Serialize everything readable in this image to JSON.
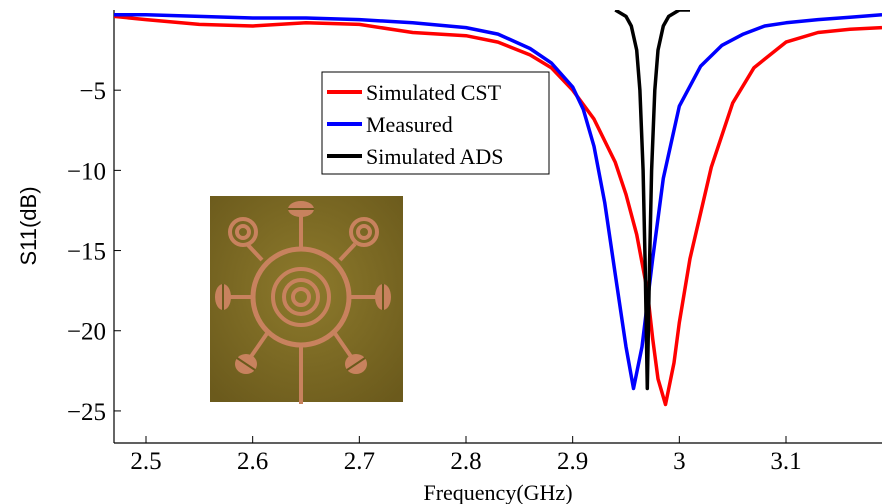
{
  "chart_data": {
    "type": "line",
    "xlabel": "Frequency(GHz)",
    "ylabel": "S11(dB)",
    "xlim": [
      2.47,
      3.19
    ],
    "ylim": [
      -27,
      0
    ],
    "xticks": [
      2.5,
      2.6,
      2.7,
      2.8,
      2.9,
      3,
      3.1
    ],
    "xtick_labels": [
      "2.5",
      "2.6",
      "2.7",
      "2.8",
      "2.9",
      "3",
      "3.1"
    ],
    "yticks": [
      -5,
      -10,
      -15,
      -20,
      -25
    ],
    "ytick_labels": [
      "−5",
      "−10",
      "−15",
      "−20",
      "−25"
    ],
    "grid": false,
    "legend_position": "upper-center",
    "series": [
      {
        "name": "Simulated CST",
        "color": "#ff0000",
        "x": [
          2.47,
          2.5,
          2.55,
          2.6,
          2.65,
          2.7,
          2.75,
          2.8,
          2.83,
          2.86,
          2.88,
          2.9,
          2.92,
          2.94,
          2.95,
          2.96,
          2.97,
          2.975,
          2.98,
          2.987,
          2.995,
          3.0,
          3.01,
          3.03,
          3.05,
          3.07,
          3.1,
          3.13,
          3.16,
          3.19
        ],
        "y": [
          -0.4,
          -0.6,
          -0.9,
          -1.0,
          -0.8,
          -0.9,
          -1.4,
          -1.6,
          -2.0,
          -2.8,
          -3.6,
          -5.0,
          -6.8,
          -9.5,
          -11.5,
          -14.0,
          -17.5,
          -20.5,
          -23.0,
          -24.6,
          -22.0,
          -19.5,
          -15.5,
          -9.8,
          -5.8,
          -3.6,
          -2.0,
          -1.4,
          -1.2,
          -1.1
        ]
      },
      {
        "name": "Measured",
        "color": "#0000ff",
        "x": [
          2.47,
          2.5,
          2.55,
          2.6,
          2.65,
          2.7,
          2.75,
          2.8,
          2.83,
          2.86,
          2.88,
          2.9,
          2.91,
          2.92,
          2.93,
          2.94,
          2.95,
          2.957,
          2.965,
          2.975,
          2.985,
          3.0,
          3.02,
          3.04,
          3.06,
          3.08,
          3.1,
          3.13,
          3.16,
          3.19
        ],
        "y": [
          -0.3,
          -0.3,
          -0.4,
          -0.5,
          -0.5,
          -0.6,
          -0.8,
          -1.1,
          -1.5,
          -2.4,
          -3.3,
          -4.8,
          -6.2,
          -8.5,
          -12.0,
          -16.5,
          -21.0,
          -23.6,
          -21.0,
          -15.5,
          -10.5,
          -6.0,
          -3.5,
          -2.2,
          -1.5,
          -1.0,
          -0.8,
          -0.6,
          -0.45,
          -0.3
        ]
      },
      {
        "name": "Simulated ADS",
        "color": "#000000",
        "x": [
          2.94,
          2.95,
          2.955,
          2.96,
          2.963,
          2.966,
          2.968,
          2.97,
          2.972,
          2.974,
          2.977,
          2.98,
          2.985,
          2.99,
          3.0,
          3.01
        ],
        "y": [
          0.0,
          -0.4,
          -1.0,
          -2.5,
          -5.0,
          -10.0,
          -16.0,
          -23.6,
          -16.0,
          -10.0,
          -5.0,
          -2.5,
          -1.0,
          -0.4,
          0.0,
          0.0
        ]
      }
    ]
  }
}
